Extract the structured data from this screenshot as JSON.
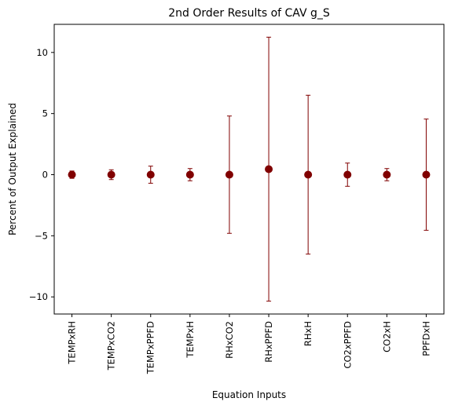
{
  "chart_data": {
    "type": "scatter",
    "title": "2nd Order Results of CAV g_S",
    "xlabel": "Equation Inputs",
    "ylabel": "Percent of Output Explained",
    "categories": [
      "TEMPxRH",
      "TEMPxCO2",
      "TEMPxPPFD",
      "TEMPxH",
      "RHxCO2",
      "RHxPPFD",
      "RHxH",
      "CO2xPPFD",
      "CO2xH",
      "PPFDxH"
    ],
    "values": [
      0.0,
      0.0,
      0.0,
      0.0,
      0.0,
      0.45,
      0.0,
      0.0,
      0.0,
      0.0
    ],
    "errors": [
      0.3,
      0.4,
      0.7,
      0.5,
      4.8,
      10.8,
      6.5,
      0.95,
      0.5,
      4.55
    ],
    "ylim": [
      -11.4,
      12.3
    ],
    "yticks": [
      -10,
      -5,
      0,
      5,
      10
    ],
    "ytick_labels": [
      "−10",
      "−5",
      "0",
      "5",
      "10"
    ],
    "grid": false,
    "marker_color": "#800000",
    "error_color": "#800000"
  }
}
